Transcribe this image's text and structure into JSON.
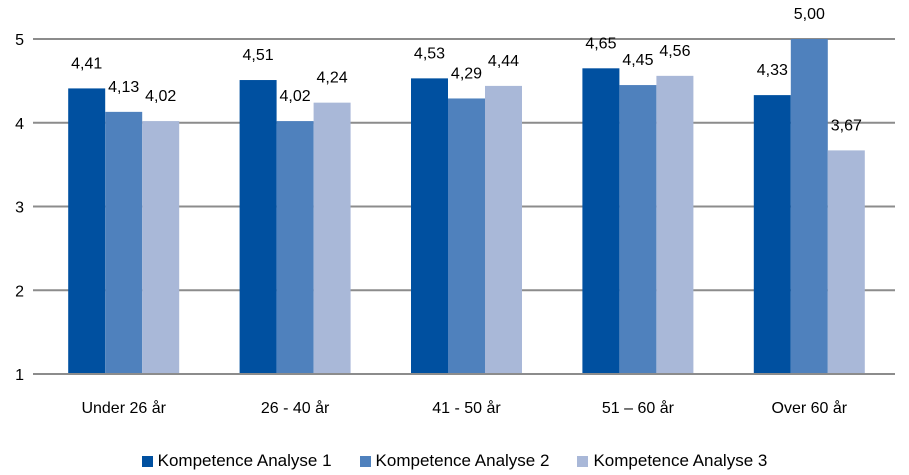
{
  "chart_data": {
    "type": "bar",
    "categories": [
      "Under 26 år",
      "26 - 40 år",
      "41 - 50 år",
      "51 – 60 år",
      "Over 60 år"
    ],
    "series": [
      {
        "name": "Kompetence Analyse 1",
        "color": "#0050A0",
        "values": [
          4.41,
          4.51,
          4.53,
          4.65,
          4.33
        ],
        "labels": [
          "4,41",
          "4,51",
          "4,53",
          "4,65",
          "4,33"
        ]
      },
      {
        "name": "Kompetence Analyse 2",
        "color": "#4F81BD",
        "values": [
          4.13,
          4.02,
          4.29,
          4.45,
          5.0
        ],
        "labels": [
          "4,13",
          "4,02",
          "4,29",
          "4,45",
          "5,00"
        ]
      },
      {
        "name": "Kompetence Analyse 3",
        "color": "#A9B8D8",
        "values": [
          4.02,
          4.24,
          4.44,
          4.56,
          3.67
        ],
        "labels": [
          "4,02",
          "4,24",
          "4,44",
          "4,56",
          "3,67"
        ]
      }
    ],
    "ylim": [
      1,
      5
    ],
    "yticks": [
      "1",
      "2",
      "3",
      "4",
      "5"
    ],
    "title": "",
    "xlabel": "",
    "ylabel": "",
    "grid": true,
    "legend": "bottom"
  }
}
